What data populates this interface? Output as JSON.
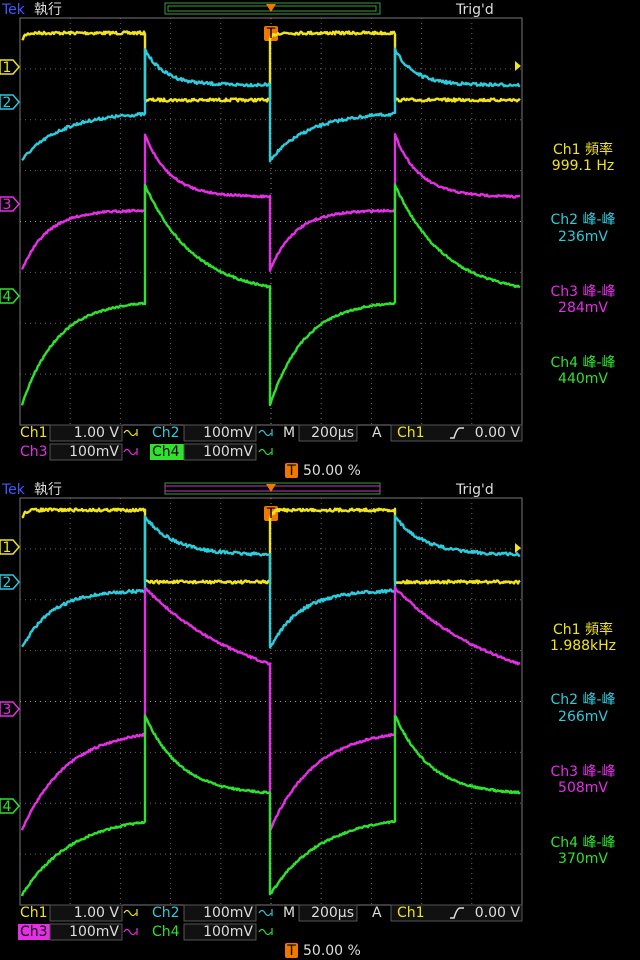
{
  "channels": [
    {
      "marker": "1",
      "color": "#f2e41a"
    },
    {
      "marker": "2",
      "color": "#2cccdc"
    },
    {
      "marker": "3",
      "color": "#e62ee6"
    },
    {
      "marker": "4",
      "color": "#2ee22e"
    }
  ],
  "screens": [
    {
      "header": {
        "brand": "Tek",
        "status": "執行",
        "trigger_state": "Trig'd",
        "trigger_marker": "T"
      },
      "measurements": [
        {
          "label": "Ch1 頻率",
          "value": "999.1 Hz"
        },
        {
          "label": "Ch2 峰-峰",
          "value": "236mV"
        },
        {
          "label": "Ch3 峰-峰",
          "value": "284mV"
        },
        {
          "label": "Ch4 峰-峰",
          "value": "440mV"
        }
      ],
      "settings": {
        "ch1": "Ch1",
        "ch1_scale": "1.00 V",
        "ch2": "Ch2",
        "ch2_scale": "100mV",
        "ch3": "Ch3",
        "ch3_scale": "100mV",
        "ch4": "Ch4",
        "ch4_scale": "100mV",
        "timebase_label": "M",
        "timebase": "200µs",
        "trigger_mode": "A",
        "trigger_source": "Ch1",
        "trigger_level": "0.00 V",
        "trigger_position": "50.00 %"
      }
    },
    {
      "header": {
        "brand": "Tek",
        "status": "執行",
        "trigger_state": "Trig'd",
        "trigger_marker": "T"
      },
      "measurements": [
        {
          "label": "Ch1 頻率",
          "value": "1.988kHz"
        },
        {
          "label": "Ch2 峰-峰",
          "value": "266mV"
        },
        {
          "label": "Ch3 峰-峰",
          "value": "508mV"
        },
        {
          "label": "Ch4 峰-峰",
          "value": "370mV"
        }
      ],
      "settings": {
        "ch1": "Ch1",
        "ch1_scale": "1.00 V",
        "ch2": "Ch2",
        "ch2_scale": "100mV",
        "ch3": "Ch3",
        "ch3_scale": "100mV",
        "ch4": "Ch4",
        "ch4_scale": "100mV",
        "timebase_label": "M",
        "timebase": "200µs",
        "trigger_mode": "A",
        "trigger_source": "Ch1",
        "trigger_level": "0.00 V",
        "trigger_position": "50.00 %"
      }
    }
  ]
}
